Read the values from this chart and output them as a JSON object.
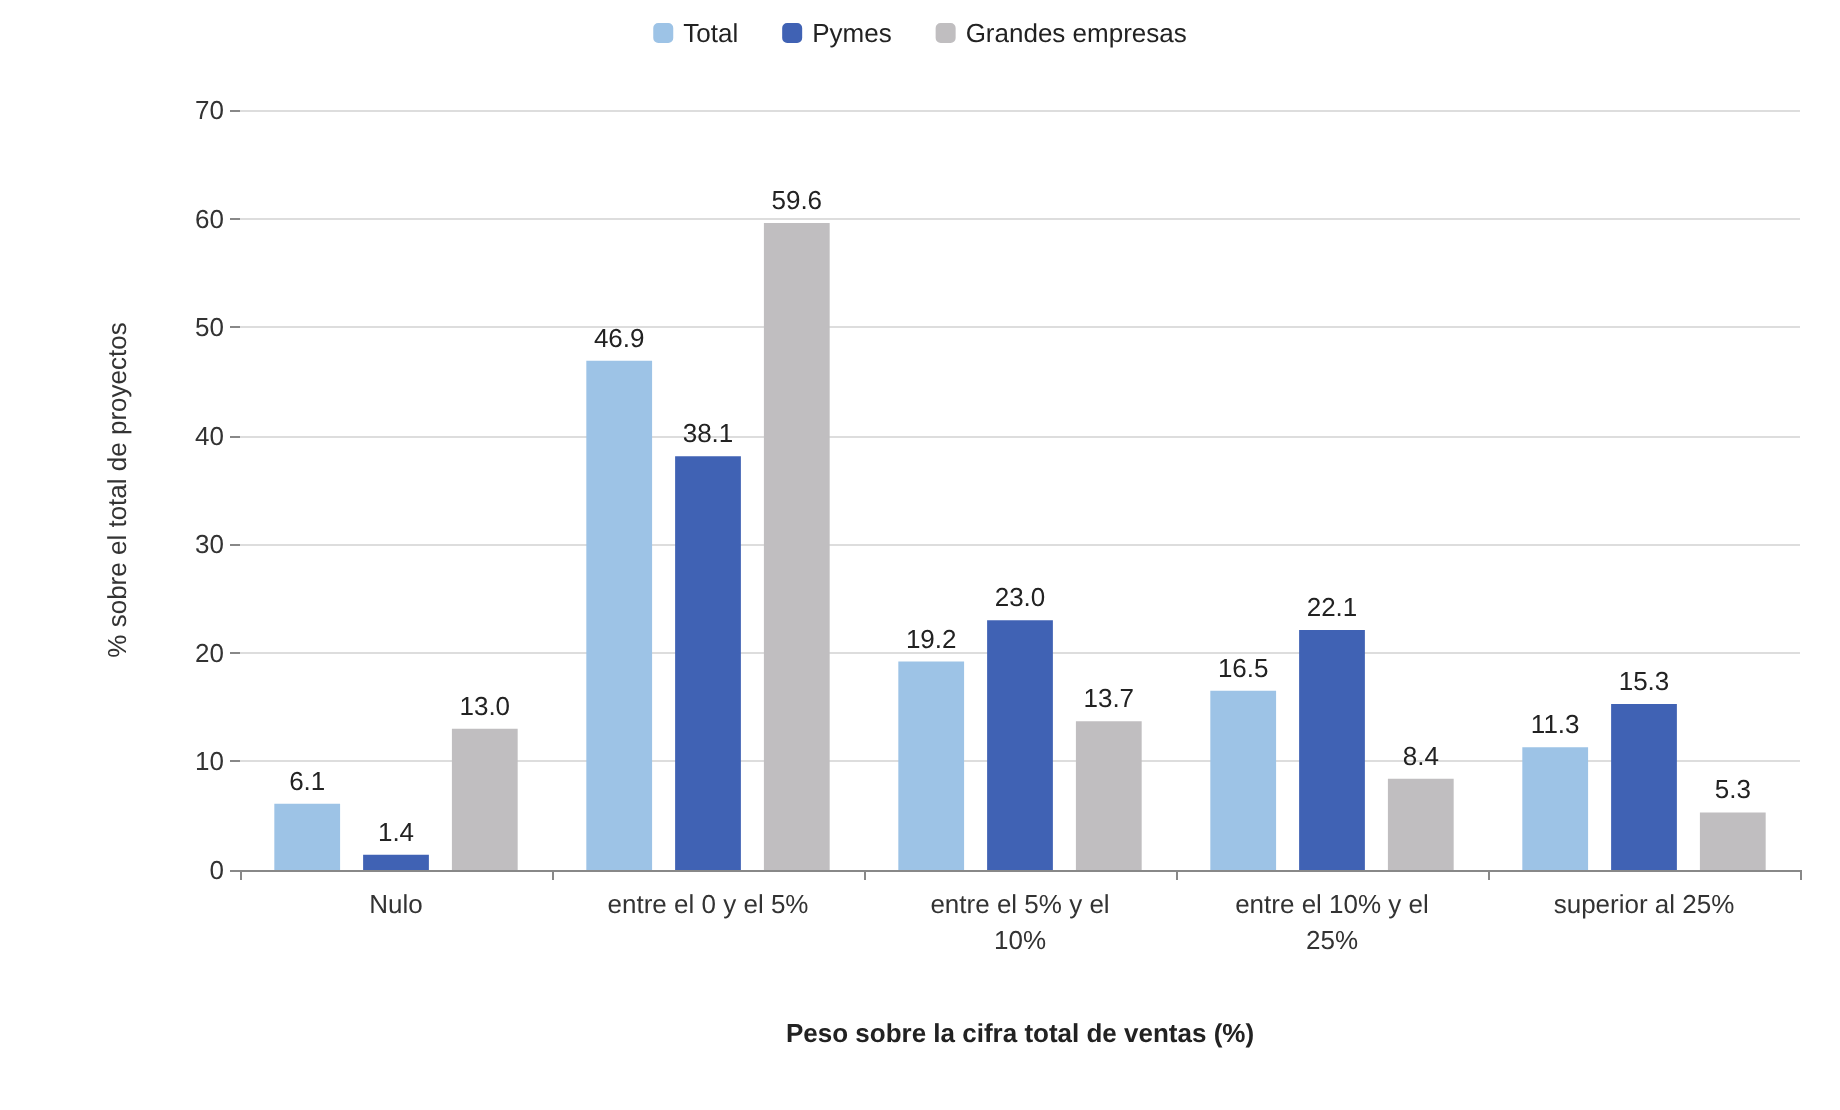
{
  "chart_data": {
    "type": "bar",
    "xlabel": "Peso sobre la cifra total de ventas (%)",
    "ylabel": "% sobre el total de proyectos",
    "categories": [
      "Nulo",
      "entre el 0 y el 5%",
      "entre el 5% y el 10%",
      "entre el 10% y el 25%",
      "superior al 25%"
    ],
    "series": [
      {
        "name": "Total",
        "color": "#9dc3e6",
        "values": [
          6.1,
          46.9,
          19.2,
          16.5,
          11.3
        ],
        "value_labels": [
          "6.1",
          "46.9",
          "19.2",
          "16.5",
          "11.3"
        ]
      },
      {
        "name": "Pymes",
        "color": "#4062b4",
        "values": [
          1.4,
          38.1,
          23.0,
          22.1,
          15.3
        ],
        "value_labels": [
          "1.4",
          "38.1",
          "23.0",
          "22.1",
          "15.3"
        ]
      },
      {
        "name": "Grandes empresas",
        "color": "#c0bec0",
        "values": [
          13.0,
          59.6,
          13.7,
          8.4,
          5.3
        ],
        "value_labels": [
          "13.0",
          "59.6",
          "13.7",
          "8.4",
          "5.3"
        ]
      }
    ],
    "ylim": [
      0,
      70
    ],
    "yticks": [
      0,
      10,
      20,
      30,
      40,
      50,
      60,
      70
    ],
    "grid": "y",
    "legend": "top"
  }
}
